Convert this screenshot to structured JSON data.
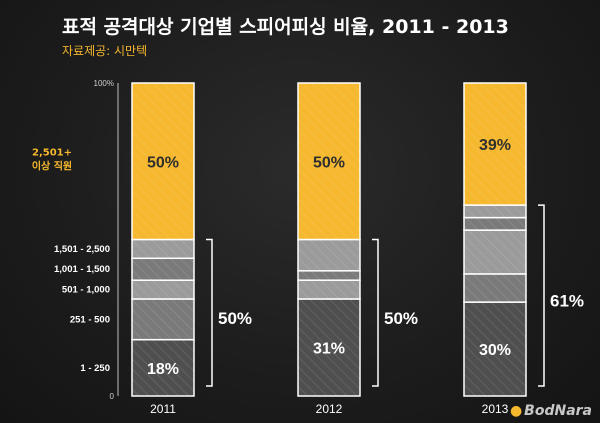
{
  "page": {
    "title": "표적 공격대상 기업별 스피어피싱 비율, 2011 - 2013",
    "source": "자료제공: 시만텍",
    "watermark": "BodNara"
  },
  "colors": {
    "gold": "#f5b82e",
    "gray_light": "#9b9b9b",
    "gray_mid": "#7a7a7a",
    "gray_dark": "#4f4f4f",
    "highlight_year": "#f5b82e"
  },
  "chart_data": {
    "type": "bar",
    "stacked": true,
    "percent": true,
    "categories": [
      "2011",
      "2012",
      "2013"
    ],
    "highlight_category": "2013",
    "ylim": [
      0,
      100
    ],
    "yticks": [
      "0",
      "100%"
    ],
    "segment_labels": [
      "1 - 250",
      "251 - 500",
      "501 - 1,000",
      "1,001 - 1,500",
      "1,501 - 2,500",
      "2,501+ 이상 직원"
    ],
    "series": [
      {
        "name": "1 - 250",
        "values": [
          18,
          31,
          30
        ]
      },
      {
        "name": "251 - 500",
        "values": [
          13,
          0,
          9
        ]
      },
      {
        "name": "501 - 1,000",
        "values": [
          6,
          6,
          14
        ]
      },
      {
        "name": "1,001 - 1,500",
        "values": [
          7,
          3,
          4
        ]
      },
      {
        "name": "1,501 - 2,500",
        "values": [
          6,
          10,
          4
        ]
      },
      {
        "name": "2,501+ 이상 직원",
        "values": [
          50,
          50,
          39
        ]
      }
    ],
    "data_labels": {
      "top": [
        "50%",
        "50%",
        "39%"
      ],
      "bottom": [
        "18%",
        "31%",
        "30%"
      ]
    },
    "brace_labels": [
      "50%",
      "50%",
      "61%"
    ],
    "legend_placement": "left",
    "grid": false
  }
}
